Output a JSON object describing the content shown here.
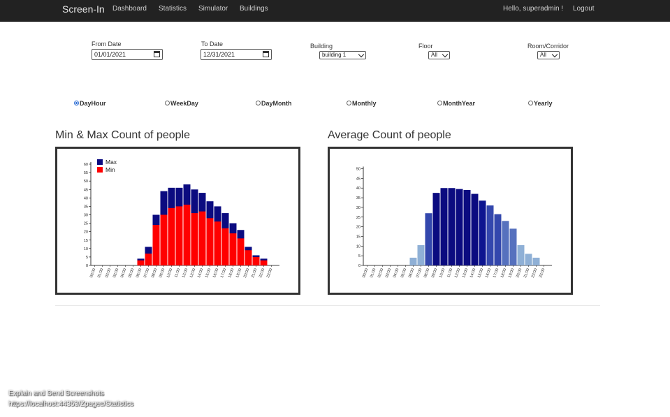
{
  "navbar": {
    "brand": "Screen-In",
    "links": [
      "Dashboard",
      "Statistics",
      "Simulator",
      "Buildings"
    ],
    "greeting": "Hello, superadmin !",
    "logout": "Logout"
  },
  "filters": {
    "from_label": "From Date",
    "from_value": "01/01/2021",
    "to_label": "To Date",
    "to_value": "12/31/2021",
    "building_label": "Building",
    "building_value": "building 1",
    "floor_label": "Floor",
    "floor_value": "All",
    "room_label": "Room/Corridor",
    "room_value": "All"
  },
  "modes": [
    "DayHour",
    "WeekDay",
    "DayMonth",
    "Monthly",
    "MonthYear",
    "Yearly"
  ],
  "selected_mode": "DayHour",
  "charts": {
    "left_title": "Min & Max Count of people",
    "right_title": "Average Count of people"
  },
  "chart_data": [
    {
      "type": "bar",
      "title": "Min & Max Count of people",
      "categories": [
        "00:00",
        "01:00",
        "02:00",
        "03:00",
        "04:00",
        "05:00",
        "06:00",
        "07:00",
        "08:00",
        "09:00",
        "10:00",
        "11:00",
        "12:00",
        "13:00",
        "14:00",
        "15:00",
        "16:00",
        "17:00",
        "18:00",
        "19:00",
        "20:00",
        "21:00",
        "22:00",
        "23:00"
      ],
      "series": [
        {
          "name": "Max",
          "color": "#0b0b80",
          "values": [
            0,
            0,
            0,
            0,
            0,
            0,
            4,
            11,
            30,
            44,
            46,
            46,
            48,
            45,
            43,
            38,
            35,
            31,
            25,
            21,
            11,
            6,
            4,
            0
          ]
        },
        {
          "name": "Min",
          "color": "#ff0000",
          "values": [
            0,
            0,
            0,
            0,
            0,
            0,
            3,
            7,
            24,
            30,
            34,
            35,
            36,
            31,
            32,
            28,
            26,
            22,
            19,
            16,
            9,
            5,
            3,
            0
          ]
        }
      ],
      "ylim": [
        0,
        60
      ],
      "yticks": [
        0,
        5,
        10,
        15,
        20,
        25,
        30,
        35,
        40,
        45,
        50,
        55,
        60
      ],
      "legend": "top-left"
    },
    {
      "type": "bar",
      "title": "Average Count of people",
      "categories": [
        "00:00",
        "01:00",
        "02:00",
        "03:00",
        "04:00",
        "05:00",
        "06:00",
        "07:00",
        "08:00",
        "09:00",
        "10:00",
        "11:00",
        "12:00",
        "13:00",
        "14:00",
        "15:00",
        "16:00",
        "17:00",
        "18:00",
        "19:00",
        "20:00",
        "21:00",
        "22:00",
        "23:00"
      ],
      "values": [
        0,
        0,
        0,
        0,
        0,
        0,
        4,
        10.5,
        27,
        37.5,
        40,
        40,
        39.5,
        39,
        37,
        33.5,
        31,
        26.5,
        23,
        19,
        10.5,
        6,
        4,
        0
      ],
      "ylim": [
        0,
        52
      ],
      "yticks": [
        0,
        5,
        10,
        15,
        20,
        25,
        30,
        35,
        40,
        45,
        50
      ],
      "colors": [
        "#0b0b80",
        "#0b0b80",
        "#0b0b80",
        "#0b0b80",
        "#0b0b80",
        "#0b0b80",
        "#8fb0d6",
        "#8fb0d6",
        "#3347ad",
        "#0b0b80",
        "#0b0b80",
        "#0b0b80",
        "#0b0b80",
        "#0b0b80",
        "#0b0b80",
        "#0d1590",
        "#3347ad",
        "#3347ad",
        "#5671be",
        "#5671be",
        "#8fb0d6",
        "#8fb0d6",
        "#8fb0d6",
        "#8fb0d6"
      ]
    }
  ],
  "footer": {
    "line1": "Explain and Send Screenshots",
    "line2": "https://localhost:44353/Zpages/Statistics"
  }
}
